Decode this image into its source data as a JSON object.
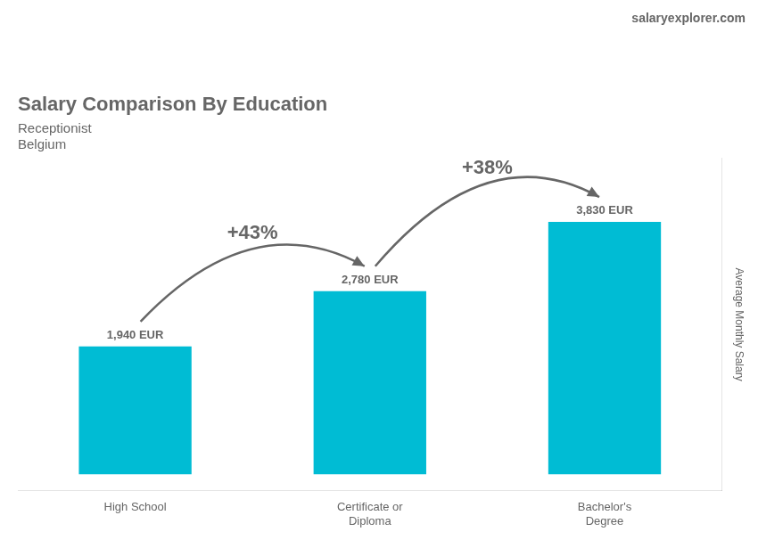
{
  "chart_data": {
    "type": "bar",
    "title": "Salary Comparison By Education",
    "subtitle": [
      "Receptionist",
      "Belgium"
    ],
    "categories": [
      "High School",
      "Certificate or\nDiploma",
      "Bachelor's\nDegree"
    ],
    "values": [
      1940,
      2780,
      3830
    ],
    "value_labels": [
      "1,940 EUR",
      "2,780 EUR",
      "3,830 EUR"
    ],
    "data_labels": true,
    "color": "#00bcd4",
    "ylabel": "Average Monthly Salary",
    "ylim": [
      -250,
      4800
    ],
    "grid": false,
    "tick_labels": "x",
    "annotations": [
      {
        "text": "+43%",
        "between": [
          "High School",
          "Certificate or\nDiploma"
        ]
      },
      {
        "text": "+38%",
        "between": [
          "Certificate or\nDiploma",
          "Bachelor's\nDegree"
        ]
      },
      {
        "text": "salaryexplorer.com"
      }
    ]
  }
}
